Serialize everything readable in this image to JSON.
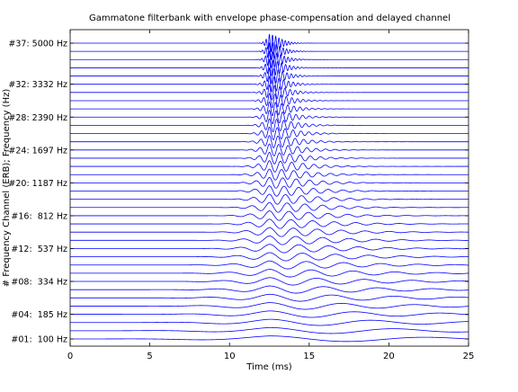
{
  "chart_data": {
    "type": "line",
    "title": "Gammatone filterbank with envelope phase-compensation and delayed channel",
    "xlabel": "Time (ms)",
    "ylabel": "# Frequency Channel (ERB); Frequency (Hz)",
    "xlim": [
      0,
      25
    ],
    "xticks": [
      0,
      5,
      10,
      15,
      20,
      25
    ],
    "grid": false,
    "series_color": "#0000ff",
    "num_channels": 37,
    "cf_range_hz": [
      100,
      5000
    ],
    "peak_time_ms": 12.5,
    "channel_labels": [
      {
        "channel": 37,
        "text": "#37: 5000 Hz"
      },
      {
        "channel": 32,
        "text": "#32: 3332 Hz"
      },
      {
        "channel": 28,
        "text": "#28: 2390 Hz"
      },
      {
        "channel": 24,
        "text": "#24: 1697 Hz"
      },
      {
        "channel": 20,
        "text": "#20: 1187 Hz"
      },
      {
        "channel": 16,
        "text": "#16:  812 Hz"
      },
      {
        "channel": 12,
        "text": "#12:  537 Hz"
      },
      {
        "channel": 8,
        "text": "#08:  334 Hz"
      },
      {
        "channel": 4,
        "text": "#04:  185 Hz"
      },
      {
        "channel": 1,
        "text": "#01:  100 Hz"
      }
    ]
  }
}
